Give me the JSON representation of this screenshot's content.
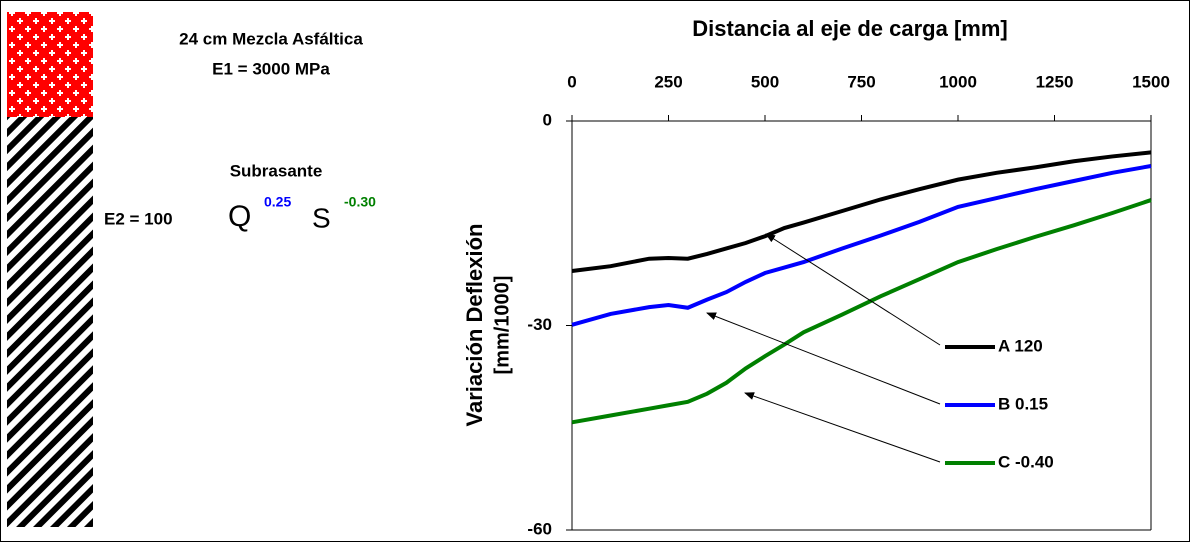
{
  "chart_data": {
    "type": "line",
    "title": "Distancia al eje de carga [mm]",
    "y_label": [
      "Variación Deflexión",
      "[mm/1000]"
    ],
    "x": [
      0,
      100,
      200,
      250,
      300,
      350,
      400,
      450,
      500,
      550,
      600,
      700,
      800,
      900,
      1000,
      1100,
      1200,
      1300,
      1400,
      1500
    ],
    "series": [
      {
        "name": "A 120",
        "color": "#000000",
        "values": [
          -22,
          -21.3,
          -20.2,
          -20.1,
          -20.2,
          -19.5,
          -18.7,
          -17.9,
          -16.9,
          -15.7,
          -14.9,
          -13.2,
          -11.5,
          -10,
          -8.6,
          -7.6,
          -6.8,
          -5.9,
          -5.2,
          -4.6
        ]
      },
      {
        "name": "B 0.15",
        "color": "#0000ff",
        "values": [
          -29.9,
          -28.3,
          -27.3,
          -27,
          -27.4,
          -26.2,
          -25.1,
          -23.6,
          -22.3,
          -21.5,
          -20.7,
          -18.7,
          -16.8,
          -14.8,
          -12.6,
          -11.3,
          -10,
          -8.8,
          -7.6,
          -6.6
        ]
      },
      {
        "name": "C -0.40",
        "color": "#008000",
        "values": [
          -44.2,
          -43.2,
          -42.2,
          -41.7,
          -41.2,
          -40,
          -38.4,
          -36.3,
          -34.5,
          -32.8,
          -31,
          -28.4,
          -25.7,
          -23.2,
          -20.7,
          -18.8,
          -17,
          -15.3,
          -13.5,
          -11.6
        ]
      }
    ],
    "xlim": [
      0,
      1500
    ],
    "xticks": [
      0,
      250,
      500,
      750,
      1000,
      1250,
      1500
    ],
    "ylim": [
      -60,
      0
    ],
    "yticks": [
      0,
      -30,
      -60
    ]
  },
  "layer_panel": {
    "top_layer": [
      "24 cm Mezcla Asfáltica",
      "E1 = 3000 MPa"
    ],
    "bottom_layer": "Subrasante",
    "equation": {
      "prefix": "E2 = 100",
      "q": "Q",
      "q_exp": "0.25",
      "s": "S",
      "s_exp": "-0.30"
    }
  }
}
